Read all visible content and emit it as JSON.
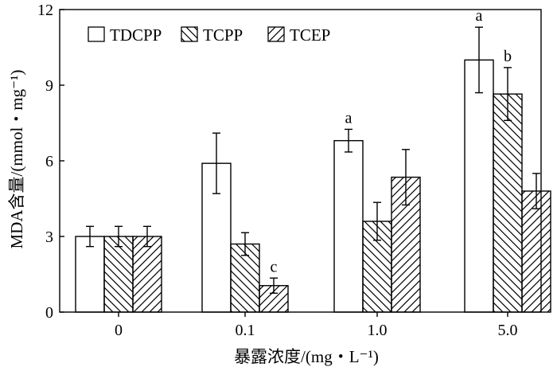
{
  "chart_data": {
    "type": "bar",
    "title": "",
    "xlabel": "暴露浓度/(mg・L⁻¹)",
    "ylabel": "MDA含量/(mmol・mg⁻¹)",
    "categories": [
      "0",
      "0.1",
      "1.0",
      "5.0"
    ],
    "ylim": [
      0,
      12
    ],
    "yticks": [
      0,
      3,
      6,
      9,
      12
    ],
    "grid": false,
    "legend_position": "top-left",
    "series": [
      {
        "name": "TDCPP",
        "pattern": "none",
        "values": [
          3.0,
          5.9,
          6.8,
          10.0
        ],
        "errors": [
          0.4,
          1.2,
          0.45,
          1.3
        ],
        "labels": [
          "",
          "",
          "a",
          "a"
        ]
      },
      {
        "name": "TCPP",
        "pattern": "backslash",
        "values": [
          3.0,
          2.7,
          3.6,
          8.65
        ],
        "errors": [
          0.4,
          0.45,
          0.75,
          1.05
        ],
        "labels": [
          "",
          "",
          "",
          "b"
        ]
      },
      {
        "name": "TCEP",
        "pattern": "slash",
        "values": [
          3.0,
          1.05,
          5.35,
          4.8
        ],
        "errors": [
          0.4,
          0.3,
          1.1,
          0.7
        ],
        "labels": [
          "",
          "c",
          "",
          ""
        ]
      }
    ],
    "colors": {
      "bar_fill": "#ffffff",
      "stroke": "#000000"
    }
  }
}
